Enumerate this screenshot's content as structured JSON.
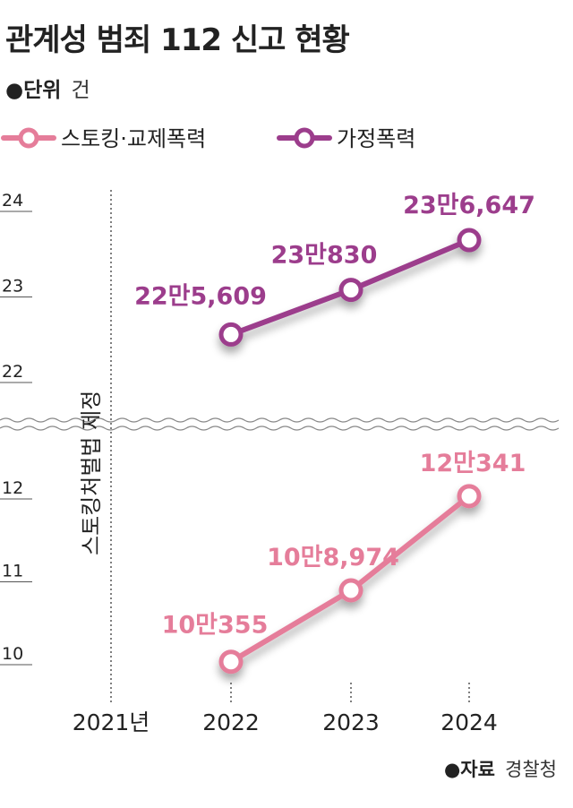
{
  "title": "관계성 범죄 112 신고 현황",
  "unit": {
    "label": "●단위",
    "value": "건"
  },
  "source": {
    "label": "●자료",
    "value": "경찰청"
  },
  "annotation": "스토킹처벌법 제정",
  "colors": {
    "stalking": "#e57d9a",
    "domestic": "#9c3d8c",
    "grid": "#aaaaaa",
    "text": "#222222"
  },
  "chart_data": {
    "type": "line",
    "x": [
      "2021년",
      "2022",
      "2023",
      "2024"
    ],
    "axis_break": true,
    "y_upper": {
      "ticks": [
        "24",
        "23",
        "22"
      ],
      "ylim": [
        22,
        24
      ]
    },
    "y_lower": {
      "ticks": [
        "12",
        "11",
        "10"
      ],
      "ylim": [
        10,
        12
      ]
    },
    "series": [
      {
        "name": "스토킹·교제폭력",
        "color": "#e57d9a",
        "panel": "lower",
        "x": [
          "2022",
          "2023",
          "2024"
        ],
        "values": [
          100355,
          108974,
          120341
        ],
        "labels": [
          "10만355",
          "10만8,974",
          "12만341"
        ]
      },
      {
        "name": "가정폭력",
        "color": "#9c3d8c",
        "panel": "upper",
        "x": [
          "2022",
          "2023",
          "2024"
        ],
        "values": [
          225609,
          230830,
          236647
        ],
        "labels": [
          "22만5,609",
          "23만830",
          "23만6,647"
        ]
      }
    ]
  }
}
